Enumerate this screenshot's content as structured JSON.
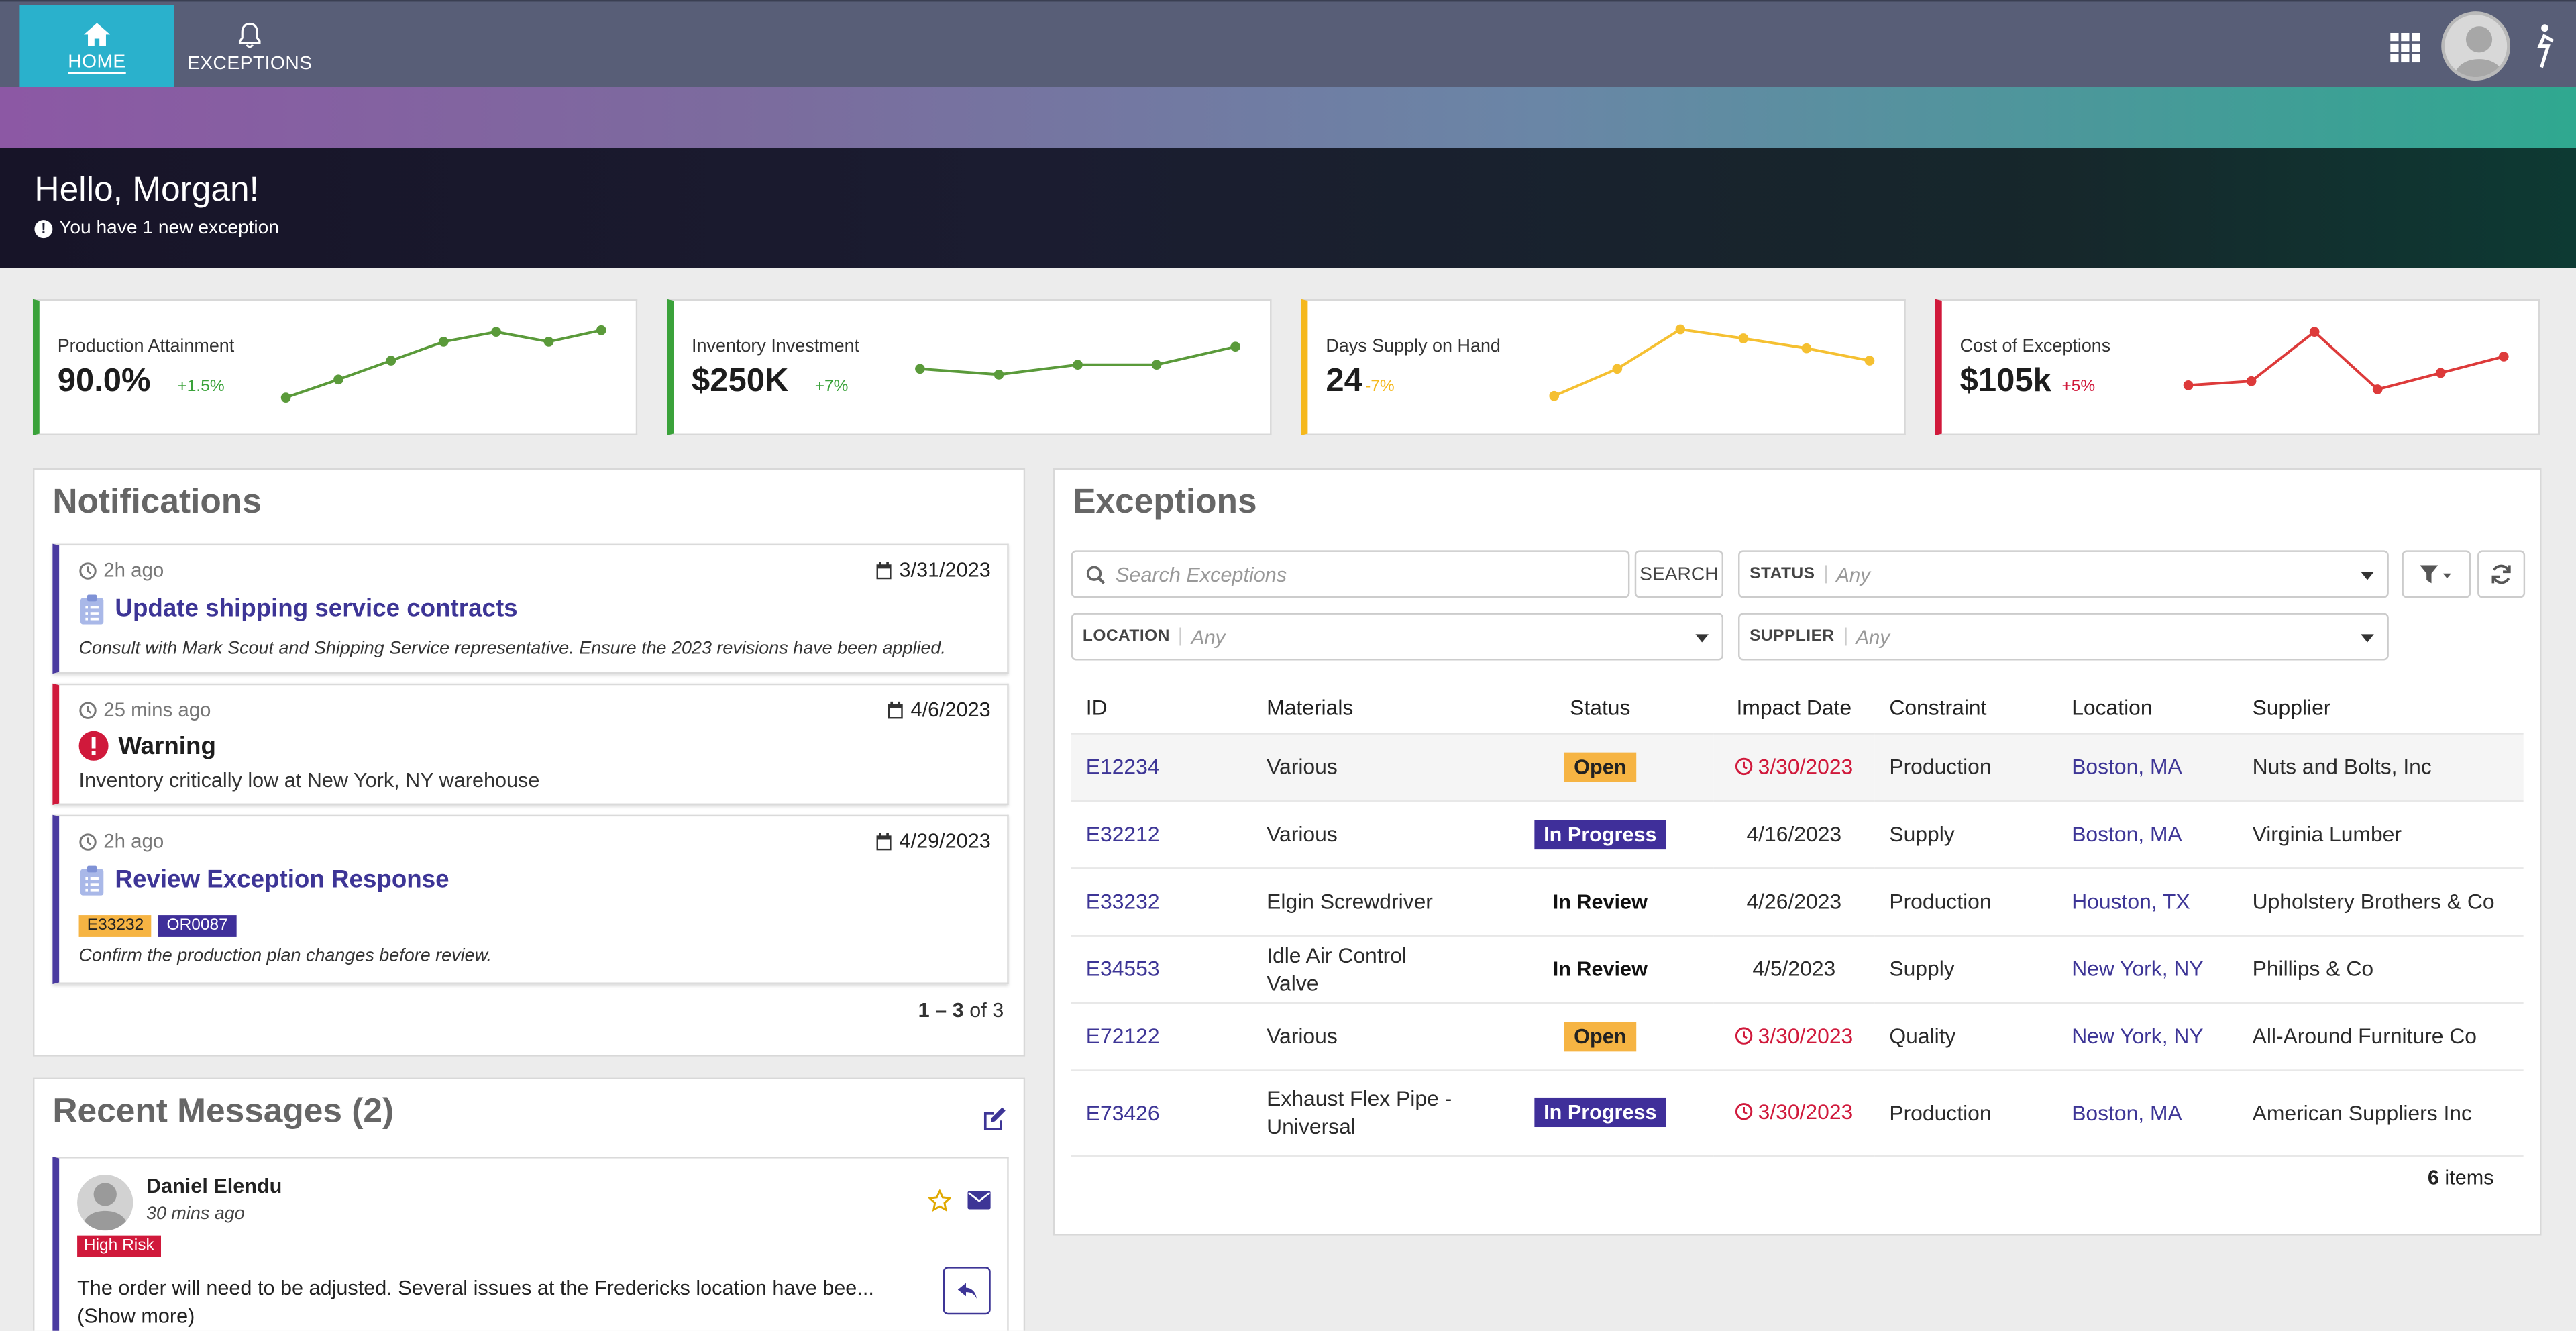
{
  "nav": {
    "home_label": "HOME",
    "exceptions_label": "EXCEPTIONS"
  },
  "hero": {
    "greeting": "Hello, Morgan!",
    "subtitle": "You have 1 new exception"
  },
  "kpis": [
    {
      "title": "Production Attainment",
      "value": "90.0%",
      "change": "+1.5%",
      "color": "#3aa23a",
      "line": "#5a9a3a",
      "trend": [
        0.1,
        0.32,
        0.55,
        0.78,
        0.9,
        0.78,
        0.92
      ]
    },
    {
      "title": "Inventory Investment",
      "value": "$250K",
      "change": "+7%",
      "color": "#3aa23a",
      "line": "#5a9a3a",
      "trend": [
        0.45,
        0.38,
        0.5,
        0.5,
        0.72
      ]
    },
    {
      "title": "Days Supply on Hand",
      "value": "24",
      "change": "-7%",
      "color": "#f5b81c",
      "line": "#f5c031",
      "trend": [
        0.12,
        0.45,
        0.93,
        0.82,
        0.7,
        0.55
      ]
    },
    {
      "title": "Cost of Exceptions",
      "value": "$105k",
      "change": "+5%",
      "color": "#d0193b",
      "line": "#dd3a3a",
      "trend": [
        0.25,
        0.3,
        0.9,
        0.2,
        0.4,
        0.6
      ]
    }
  ],
  "notifications": {
    "title": "Notifications",
    "items": [
      {
        "ago": "2h ago",
        "date": "3/31/2023",
        "title": "Update shipping service contracts",
        "desc": "Consult with Mark Scout and Shipping Service representative. Ensure the 2023 revisions have been applied."
      },
      {
        "ago": "25 mins ago",
        "date": "4/6/2023",
        "title": "Warning",
        "desc": "Inventory critically low at New York, NY warehouse"
      },
      {
        "ago": "2h ago",
        "date": "4/29/2023",
        "title": "Review Exception Response",
        "tags": [
          "E33232",
          "OR0087"
        ],
        "desc": "Confirm the production plan changes before review."
      }
    ],
    "pager_range": "1 – 3",
    "pager_total": "of 3"
  },
  "messages": {
    "title": "Recent Messages (2)",
    "item": {
      "sender": "Daniel Elendu",
      "time": "30 mins ago",
      "badge": "High Risk",
      "text": "The order will need to be adjusted. Several issues at the Fredericks location have bee... (Show more)"
    }
  },
  "exceptions": {
    "title": "Exceptions",
    "search_placeholder": "Search Exceptions",
    "search_button": "SEARCH",
    "filters": {
      "status_label": "STATUS",
      "status_value": "Any",
      "location_label": "LOCATION",
      "location_value": "Any",
      "supplier_label": "SUPPLIER",
      "supplier_value": "Any"
    },
    "columns": [
      "ID",
      "Materials",
      "Status",
      "Impact Date",
      "Constraint",
      "Location",
      "Supplier"
    ],
    "rows": [
      {
        "id": "E12234",
        "materials": "Various",
        "status": "Open",
        "date": "3/30/2023",
        "late": true,
        "constraint": "Production",
        "location": "Boston, MA",
        "supplier": "Nuts and Bolts, Inc"
      },
      {
        "id": "E32212",
        "materials": "Various",
        "status": "In Progress",
        "date": "4/16/2023",
        "late": false,
        "constraint": "Supply",
        "location": "Boston, MA",
        "supplier": "Virginia Lumber"
      },
      {
        "id": "E33232",
        "materials": "Elgin Screwdriver",
        "status": "In Review",
        "date": "4/26/2023",
        "late": false,
        "constraint": "Production",
        "location": "Houston, TX",
        "supplier": "Upholstery Brothers & Co"
      },
      {
        "id": "E34553",
        "materials": "Idle Air Control Valve",
        "status": "In Review",
        "date": "4/5/2023",
        "late": false,
        "constraint": "Supply",
        "location": "New York, NY",
        "supplier": "Phillips & Co"
      },
      {
        "id": "E72122",
        "materials": "Various",
        "status": "Open",
        "date": "3/30/2023",
        "late": true,
        "constraint": "Quality",
        "location": "New York, NY",
        "supplier": "All-Around Furniture Co"
      },
      {
        "id": "E73426",
        "materials": "Exhaust Flex Pipe - Universal",
        "status": "In Progress",
        "date": "3/30/2023",
        "late": true,
        "constraint": "Production",
        "location": "Boston, MA",
        "supplier": "American Suppliers Inc"
      }
    ],
    "count": "6",
    "count_label": "items"
  }
}
